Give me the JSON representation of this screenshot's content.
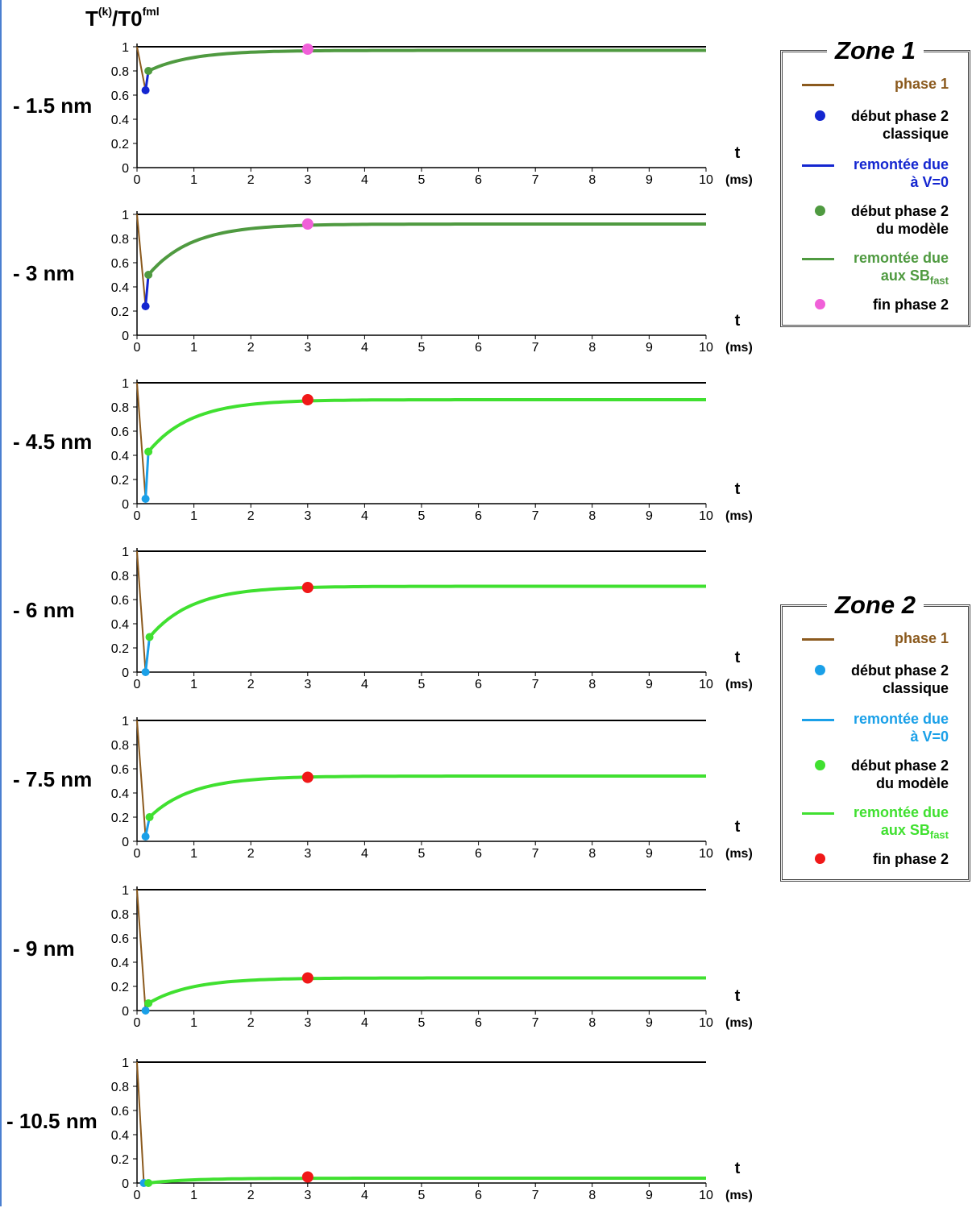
{
  "y_title": {
    "main": "T",
    "sup1": "(k)",
    "mid": "/T0",
    "sup2": "fml"
  },
  "colors": {
    "phase1": "#8b5a1e",
    "zone1_classic": "#1426d0",
    "zone1_model": "#4f9a40",
    "zone1_end": "#f060d8",
    "zone2_classic": "#1aa0e8",
    "zone2_model": "#40e030",
    "zone2_end": "#f01818",
    "reference": "#000000"
  },
  "legends": [
    {
      "title": "Zone 1",
      "items": [
        {
          "kind": "line",
          "color": "#8b5a1e",
          "text": "phase 1"
        },
        {
          "kind": "dot",
          "color": "#1426d0",
          "text": "début phase 2\nclassique"
        },
        {
          "kind": "line",
          "color": "#1426d0",
          "text": "remontée due\nà V=0"
        },
        {
          "kind": "dot",
          "color": "#4f9a40",
          "text": "début phase 2\ndu modèle"
        },
        {
          "kind": "line",
          "color": "#4f9a40",
          "text": "remontée due",
          "text2": "aux SB",
          "sub": "fast"
        },
        {
          "kind": "dot",
          "color": "#f060d8",
          "text": "fin phase 2"
        }
      ]
    },
    {
      "title": "Zone 2",
      "items": [
        {
          "kind": "line",
          "color": "#8b5a1e",
          "text": "phase 1"
        },
        {
          "kind": "dot",
          "color": "#1aa0e8",
          "text": "début phase 2\nclassique"
        },
        {
          "kind": "line",
          "color": "#1aa0e8",
          "text": "remontée due\nà V=0"
        },
        {
          "kind": "dot",
          "color": "#40e030",
          "text": "début phase 2\ndu modèle"
        },
        {
          "kind": "line",
          "color": "#40e030",
          "text": "remontée due",
          "text2": "aux SB",
          "sub": "fast"
        },
        {
          "kind": "dot",
          "color": "#f01818",
          "text": "fin phase 2"
        }
      ]
    }
  ],
  "chart_data": [
    {
      "type": "line",
      "label": "- 1.5 nm",
      "zone": 1,
      "y_ticks": [
        "0",
        "0.2",
        "0.4",
        "0.6",
        "0.8",
        "1"
      ],
      "x_ticks": [
        "0",
        "1",
        "2",
        "3",
        "4",
        "5",
        "6",
        "7",
        "8",
        "9",
        "10"
      ],
      "x_unit": "(ms)",
      "x_var": "t",
      "xlim": [
        0,
        10
      ],
      "ylim": [
        0,
        1
      ],
      "reference": 1,
      "classic_start": [
        0.15,
        0.64
      ],
      "model_start": [
        0.2,
        0.8
      ],
      "end_phase2": [
        3,
        0.98
      ],
      "plateau": 0.97
    },
    {
      "type": "line",
      "label": "- 3 nm",
      "zone": 1,
      "y_ticks": [
        "0",
        "0.2",
        "0.4",
        "0.6",
        "0.8",
        "1"
      ],
      "x_ticks": [
        "0",
        "1",
        "2",
        "3",
        "4",
        "5",
        "6",
        "7",
        "8",
        "9",
        "10"
      ],
      "x_unit": "(ms)",
      "x_var": "t",
      "xlim": [
        0,
        10
      ],
      "ylim": [
        0,
        1
      ],
      "reference": 1,
      "classic_start": [
        0.15,
        0.24
      ],
      "model_start": [
        0.2,
        0.5
      ],
      "end_phase2": [
        3,
        0.92
      ],
      "plateau": 0.92
    },
    {
      "type": "line",
      "label": "- 4.5 nm",
      "zone": 2,
      "y_ticks": [
        "0",
        "0.2",
        "0.4",
        "0.6",
        "0.8",
        "1"
      ],
      "x_ticks": [
        "0",
        "1",
        "2",
        "3",
        "4",
        "5",
        "6",
        "7",
        "8",
        "9",
        "10"
      ],
      "x_unit": "(ms)",
      "x_var": "t",
      "xlim": [
        0,
        10
      ],
      "ylim": [
        0,
        1
      ],
      "reference": 1,
      "classic_start": [
        0.15,
        0.04
      ],
      "model_start": [
        0.2,
        0.43
      ],
      "end_phase2": [
        3,
        0.86
      ],
      "plateau": 0.86
    },
    {
      "type": "line",
      "label": "- 6 nm",
      "zone": 2,
      "y_ticks": [
        "0",
        "0.2",
        "0.4",
        "0.6",
        "0.8",
        "1"
      ],
      "x_ticks": [
        "0",
        "1",
        "2",
        "3",
        "4",
        "5",
        "6",
        "7",
        "8",
        "9",
        "10"
      ],
      "x_unit": "(ms)",
      "x_var": "t",
      "xlim": [
        0,
        10
      ],
      "ylim": [
        0,
        1
      ],
      "reference": 1,
      "classic_start": [
        0.15,
        0.0
      ],
      "model_start": [
        0.22,
        0.29
      ],
      "end_phase2": [
        3,
        0.7
      ],
      "plateau": 0.71
    },
    {
      "type": "line",
      "label": "- 7.5 nm",
      "zone": 2,
      "y_ticks": [
        "0",
        "0.2",
        "0.4",
        "0.6",
        "0.8",
        "1"
      ],
      "x_ticks": [
        "0",
        "1",
        "2",
        "3",
        "4",
        "5",
        "6",
        "7",
        "8",
        "9",
        "10"
      ],
      "x_unit": "(ms)",
      "x_var": "t",
      "xlim": [
        0,
        10
      ],
      "ylim": [
        0,
        1
      ],
      "reference": 1,
      "classic_start": [
        0.15,
        0.04
      ],
      "model_start": [
        0.22,
        0.2
      ],
      "end_phase2": [
        3,
        0.53
      ],
      "plateau": 0.54
    },
    {
      "type": "line",
      "label": "- 9 nm",
      "zone": 2,
      "y_ticks": [
        "0",
        "0.2",
        "0.4",
        "0.6",
        "0.8",
        "1"
      ],
      "x_ticks": [
        "0",
        "1",
        "2",
        "3",
        "4",
        "5",
        "6",
        "7",
        "8",
        "9",
        "10"
      ],
      "x_unit": "(ms)",
      "x_var": "t",
      "xlim": [
        0,
        10
      ],
      "ylim": [
        0,
        1
      ],
      "reference": 1,
      "classic_start": [
        0.15,
        0.0
      ],
      "model_start": [
        0.2,
        0.06
      ],
      "end_phase2": [
        3,
        0.27
      ],
      "plateau": 0.27
    },
    {
      "type": "line",
      "label": "- 10.5 nm",
      "zone": 2,
      "y_ticks": [
        "0",
        "0.2",
        "0.4",
        "0.6",
        "0.8",
        "1"
      ],
      "x_ticks": [
        "0",
        "1",
        "2",
        "3",
        "4",
        "5",
        "6",
        "7",
        "8",
        "9",
        "10"
      ],
      "x_unit": "(ms)",
      "x_var": "t",
      "xlim": [
        0,
        10
      ],
      "ylim": [
        0,
        1
      ],
      "reference": 1,
      "classic_start": [
        0.12,
        0.0
      ],
      "model_start": [
        0.2,
        0.0
      ],
      "end_phase2": [
        3,
        0.05
      ],
      "plateau": 0.04
    }
  ]
}
